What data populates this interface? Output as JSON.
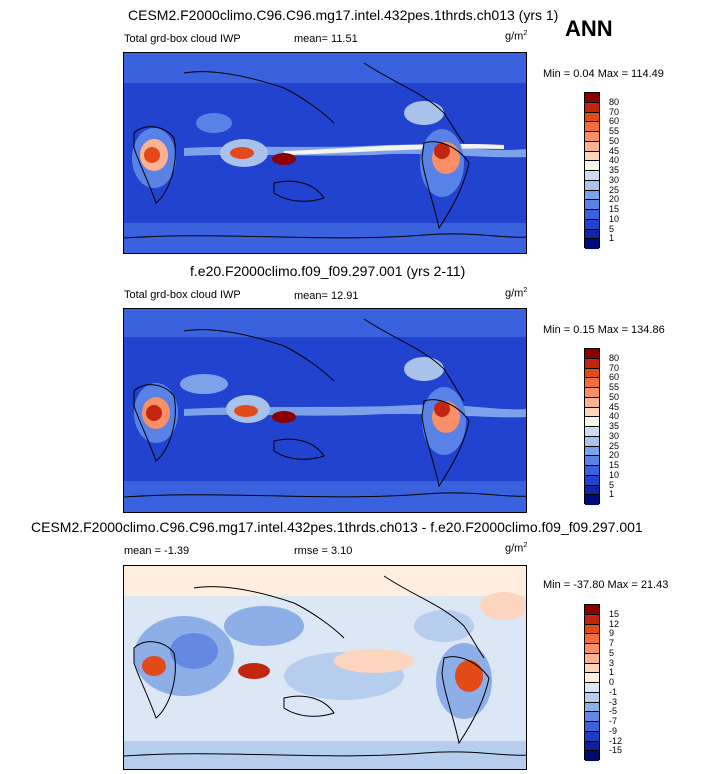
{
  "season": "ANN",
  "panels": [
    {
      "title": "CESM2.F2000climo.C96.C96.mg17.intel.432pes.1thrds.ch013 (yrs 1)",
      "left_label": "Total grd-box cloud IWP",
      "stat_label": "mean=",
      "stat_value": "11.51",
      "units": "g/m",
      "units_sup": "2",
      "minmax": "Min =   0.04 Max = 114.49",
      "levels": [
        "80",
        "70",
        "60",
        "55",
        "50",
        "45",
        "40",
        "35",
        "30",
        "25",
        "20",
        "15",
        "10",
        "5",
        "1"
      ],
      "colors": [
        "#8b0000",
        "#c2260e",
        "#e34a1a",
        "#f26b3a",
        "#f88f66",
        "#fbb293",
        "#fdd4bd",
        "#f4f4ee",
        "#cfdcf0",
        "#a8c2ec",
        "#7ea2ea",
        "#5882e6",
        "#3a62df",
        "#2242d0",
        "#10259f",
        "#000b7a"
      ],
      "field_colors": [
        "#10259f",
        "#2242d0",
        "#3a62df",
        "#5882e6",
        "#7ea2ea",
        "#a8c2ec",
        "#f4f4ee",
        "#fbb293",
        "#e34a1a",
        "#8b0000"
      ]
    },
    {
      "title": "f.e20.F2000climo.f09_f09.297.001 (yrs 2-11)",
      "left_label": "Total grd-box cloud IWP",
      "stat_label": "mean=",
      "stat_value": "12.91",
      "units": "g/m",
      "units_sup": "2",
      "minmax": "Min =   0.15 Max = 134.86",
      "levels": [
        "80",
        "70",
        "60",
        "55",
        "50",
        "45",
        "40",
        "35",
        "30",
        "25",
        "20",
        "15",
        "10",
        "5",
        "1"
      ],
      "colors": [
        "#8b0000",
        "#c2260e",
        "#e34a1a",
        "#f26b3a",
        "#f88f66",
        "#fbb293",
        "#fdd4bd",
        "#f4f4ee",
        "#cfdcf0",
        "#a8c2ec",
        "#7ea2ea",
        "#5882e6",
        "#3a62df",
        "#2242d0",
        "#10259f",
        "#000b7a"
      ]
    },
    {
      "title": "CESM2.F2000climo.C96.C96.mg17.intel.432pes.1thrds.ch013 - f.e20.F2000climo.f09_f09.297.001",
      "left_label": "mean =  -1.39",
      "stat_label": "rmse =",
      "stat_value": "3.10",
      "units": "g/m",
      "units_sup": "2",
      "minmax": "Min = -37.80 Max =  21.43",
      "levels": [
        "15",
        "12",
        "9",
        "7",
        "5",
        "3",
        "1",
        "0",
        "-1",
        "-3",
        "-5",
        "-7",
        "-9",
        "-12",
        "-15"
      ],
      "colors": [
        "#8b0000",
        "#c2260e",
        "#e34a1a",
        "#f26b3a",
        "#f88f66",
        "#fbb293",
        "#fdd4bd",
        "#fdeee0",
        "#dce7f5",
        "#b7cdee",
        "#8eaee8",
        "#6588e2",
        "#3f62d8",
        "#1e3cc0",
        "#0d2293",
        "#000b6a"
      ]
    }
  ]
}
